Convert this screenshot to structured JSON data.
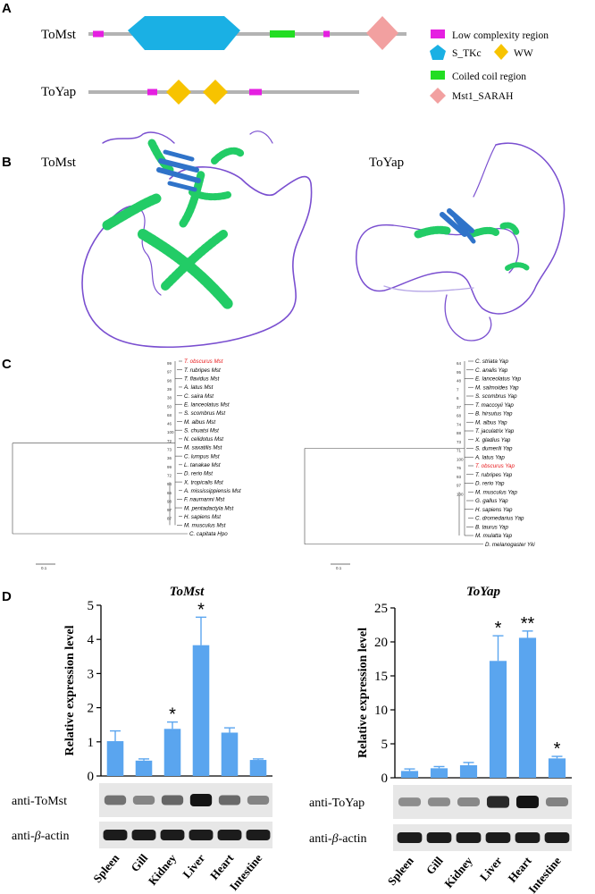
{
  "colors": {
    "low_complexity": "#e51fe1",
    "s_tkc": "#1ab0e4",
    "ww": "#f7c300",
    "coiled_coil": "#22dd22",
    "mst1_sarah": "#f2a0a0",
    "backbone": "#b3b3b3",
    "bar": "#5aa5ef",
    "highlight": "#e8191b",
    "coil": "#7a4fd0",
    "helix": "#2ed36a",
    "sheet": "#2f73c9"
  },
  "panel_a": {
    "letter": "A",
    "tomst_label": "ToMst",
    "toyap_label": "ToYap",
    "legend": [
      {
        "label": "Low complexity region",
        "icon": "magenta-rect-icon"
      },
      {
        "label": "S_TKc",
        "icon": "blue-pentagon-icon"
      },
      {
        "label": "WW",
        "icon": "yellow-diamond-icon"
      },
      {
        "label": "Coiled coil region",
        "icon": "green-rect-icon"
      },
      {
        "label": "Mst1_SARAH",
        "icon": "pink-diamond-icon"
      }
    ]
  },
  "panel_b": {
    "letter": "B",
    "left_label": "ToMst",
    "right_label": "ToYap"
  },
  "panel_c": {
    "letter": "C",
    "mst_tree": {
      "taxa": [
        "T. obscurus Mst",
        "T. rubripes Mst",
        "T. flavidus Mst",
        "A. latus Mst",
        "C. saira Mst",
        "E. lanceolatus Mst",
        "S. scombrus Mst",
        "M. albus Mst",
        "S. chuatsi Mst",
        "N. celidotus Mst",
        "M. saxatilis Mst",
        "C. lumpus Mst",
        "L. tanakae Mst",
        "D. rerio Mst",
        "X. tropicalis Mst",
        "A. mississippiensis Mst",
        "F. naumanni Mst",
        "M. pentadactyla Mst",
        "H. sapiens Mst",
        "M. musculus Mst",
        "C. capitata Hpo"
      ],
      "highlighted": "T. obscurus Mst",
      "bootstraps": [
        "99",
        "97",
        "98",
        "39",
        "38",
        "50",
        "68",
        "46",
        "100",
        "72",
        "73",
        "36",
        "99",
        "72",
        "94",
        "66",
        "98",
        "97",
        "87"
      ],
      "scale": "0.1"
    },
    "yap_tree": {
      "taxa": [
        "C. striata Yap",
        "C. analis Yap",
        "E. lanceolatus Yap",
        "M. salmoides Yap",
        "S. scombrus Yap",
        "T. maccoyii Yap",
        "B. hirsutus Yap",
        "M. albus Yap",
        "T. jaculatrix Yap",
        "X. gladius Yap",
        "S. dumerili Yap",
        "A. latus Yap",
        "T. obscurus Yap",
        "T. rubripes Yap",
        "D. rerio Yap",
        "M. musculus Yap",
        "G. gallus Yap",
        "H. sapiens Yap",
        "C. dromedarius Yap",
        "B. taurus Yap",
        "M. mulatta Yap",
        "D. melanogaster Yki"
      ],
      "highlighted": "T. obscurus Yap",
      "bootstraps": [
        "64",
        "95",
        "48",
        "7",
        "6",
        "37",
        "68",
        "74",
        "88",
        "73",
        "71",
        "100",
        "76",
        "93",
        "97",
        "100"
      ],
      "scale": "0.1"
    }
  },
  "panel_d": {
    "letter": "D",
    "blot_left": {
      "band1": "anti-ToMst",
      "band2_prefix": "anti-",
      "band2_greek": "β",
      "band2_suffix": "-actin"
    },
    "blot_right": {
      "band1": "anti-ToYap",
      "band2_prefix": "anti-",
      "band2_greek": "β",
      "band2_suffix": "-actin"
    }
  },
  "chart_data": [
    {
      "type": "bar",
      "title": "ToMst",
      "ylabel": "Relative expression level",
      "categories": [
        "Spleen",
        "Gill",
        "Kidney",
        "Liver",
        "Heart",
        "Intestine"
      ],
      "values": [
        1.02,
        0.45,
        1.38,
        3.83,
        1.27,
        0.47
      ],
      "errors": [
        0.3,
        0.05,
        0.2,
        0.82,
        0.14,
        0.03
      ],
      "significance": [
        "",
        "",
        "*",
        "*",
        "",
        ""
      ],
      "ylim": [
        0,
        5
      ],
      "yticks": [
        "0",
        "1",
        "2",
        "3",
        "4",
        "5"
      ]
    },
    {
      "type": "bar",
      "title": "ToYap",
      "ylabel": "Relative expression level",
      "categories": [
        "Spleen",
        "Gill",
        "Kidney",
        "Liver",
        "Heart",
        "Intestine"
      ],
      "values": [
        1.0,
        1.4,
        1.85,
        17.2,
        20.6,
        2.85
      ],
      "errors": [
        0.3,
        0.25,
        0.4,
        3.7,
        1.0,
        0.3
      ],
      "significance": [
        "",
        "",
        "",
        "*",
        "**",
        "*"
      ],
      "ylim": [
        0,
        25
      ],
      "yticks": [
        "0",
        "5",
        "10",
        "15",
        "20",
        "25"
      ]
    }
  ]
}
